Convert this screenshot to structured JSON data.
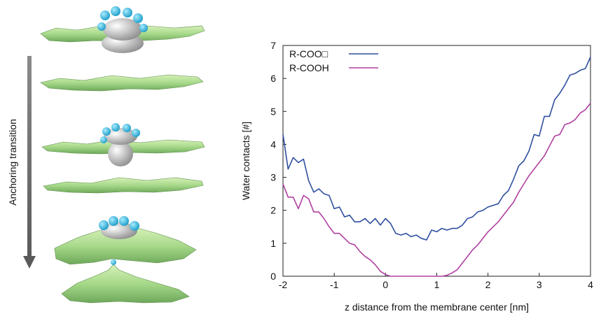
{
  "figure": {
    "side_label": "Anchoring transition"
  },
  "chart_data": {
    "type": "line",
    "xlabel": "z distance from the membrane center [nm]",
    "ylabel": "Water contacts [#]",
    "xlim": [
      -2,
      4
    ],
    "ylim": [
      0,
      7
    ],
    "xticks": [
      "-2",
      "-1",
      "0",
      "1",
      "2",
      "3",
      "4"
    ],
    "yticks": [
      "0",
      "1",
      "2",
      "3",
      "4",
      "5",
      "6",
      "7"
    ],
    "grid": false,
    "legend_position": "top-left",
    "series": [
      {
        "name": "R-COO□",
        "color": "#2f4f9f",
        "x": [
          -2.0,
          -1.9,
          -1.8,
          -1.7,
          -1.6,
          -1.5,
          -1.4,
          -1.3,
          -1.2,
          -1.1,
          -1.0,
          -0.9,
          -0.8,
          -0.7,
          -0.6,
          -0.5,
          -0.4,
          -0.3,
          -0.2,
          -0.1,
          0.0,
          0.1,
          0.2,
          0.3,
          0.4,
          0.5,
          0.6,
          0.7,
          0.8,
          0.9,
          1.0,
          1.1,
          1.2,
          1.3,
          1.4,
          1.5,
          1.6,
          1.7,
          1.8,
          1.9,
          2.0,
          2.1,
          2.2,
          2.3,
          2.4,
          2.5,
          2.6,
          2.7,
          2.8,
          2.9,
          3.0,
          3.1,
          3.2,
          3.3,
          3.4,
          3.5,
          3.6,
          3.7,
          3.8,
          3.9,
          4.0
        ],
        "y": [
          4.3,
          3.25,
          3.6,
          3.45,
          3.55,
          2.9,
          2.55,
          2.65,
          2.5,
          2.45,
          2.05,
          2.1,
          1.8,
          1.85,
          1.65,
          1.65,
          1.75,
          1.6,
          1.75,
          1.55,
          1.75,
          1.6,
          1.3,
          1.25,
          1.3,
          1.2,
          1.25,
          1.15,
          1.1,
          1.4,
          1.35,
          1.45,
          1.4,
          1.45,
          1.45,
          1.55,
          1.75,
          1.8,
          1.95,
          2.0,
          2.1,
          2.15,
          2.2,
          2.45,
          2.6,
          2.95,
          3.35,
          3.5,
          3.8,
          4.3,
          4.25,
          4.85,
          4.85,
          5.35,
          5.55,
          5.8,
          6.1,
          6.15,
          6.25,
          6.3,
          6.65
        ]
      },
      {
        "name": "R-COOH",
        "color": "#b040a0",
        "x": [
          -2.0,
          -1.9,
          -1.8,
          -1.7,
          -1.6,
          -1.5,
          -1.4,
          -1.3,
          -1.2,
          -1.1,
          -1.0,
          -0.9,
          -0.8,
          -0.7,
          -0.6,
          -0.5,
          -0.4,
          -0.3,
          -0.2,
          -0.1,
          0.0,
          0.1,
          0.2,
          0.3,
          0.4,
          0.5,
          0.6,
          0.7,
          0.8,
          0.9,
          1.0,
          1.1,
          1.2,
          1.3,
          1.4,
          1.5,
          1.6,
          1.7,
          1.8,
          1.9,
          2.0,
          2.1,
          2.2,
          2.3,
          2.4,
          2.5,
          2.6,
          2.7,
          2.8,
          2.9,
          3.0,
          3.1,
          3.2,
          3.3,
          3.4,
          3.5,
          3.6,
          3.7,
          3.8,
          3.9,
          4.0
        ],
        "y": [
          2.8,
          2.4,
          2.4,
          2.05,
          2.45,
          2.35,
          1.95,
          1.95,
          1.75,
          1.5,
          1.3,
          1.3,
          1.15,
          1.0,
          0.95,
          0.75,
          0.6,
          0.5,
          0.35,
          0.15,
          0.05,
          0.0,
          0.0,
          0.0,
          0.0,
          0.0,
          0.0,
          0.0,
          0.0,
          0.0,
          0.0,
          0.0,
          0.03,
          0.1,
          0.2,
          0.4,
          0.6,
          0.8,
          0.95,
          1.15,
          1.35,
          1.5,
          1.65,
          1.85,
          2.05,
          2.25,
          2.55,
          2.8,
          3.05,
          3.25,
          3.45,
          3.65,
          3.95,
          4.25,
          4.3,
          4.6,
          4.65,
          4.75,
          4.95,
          5.05,
          5.25
        ]
      }
    ]
  }
}
